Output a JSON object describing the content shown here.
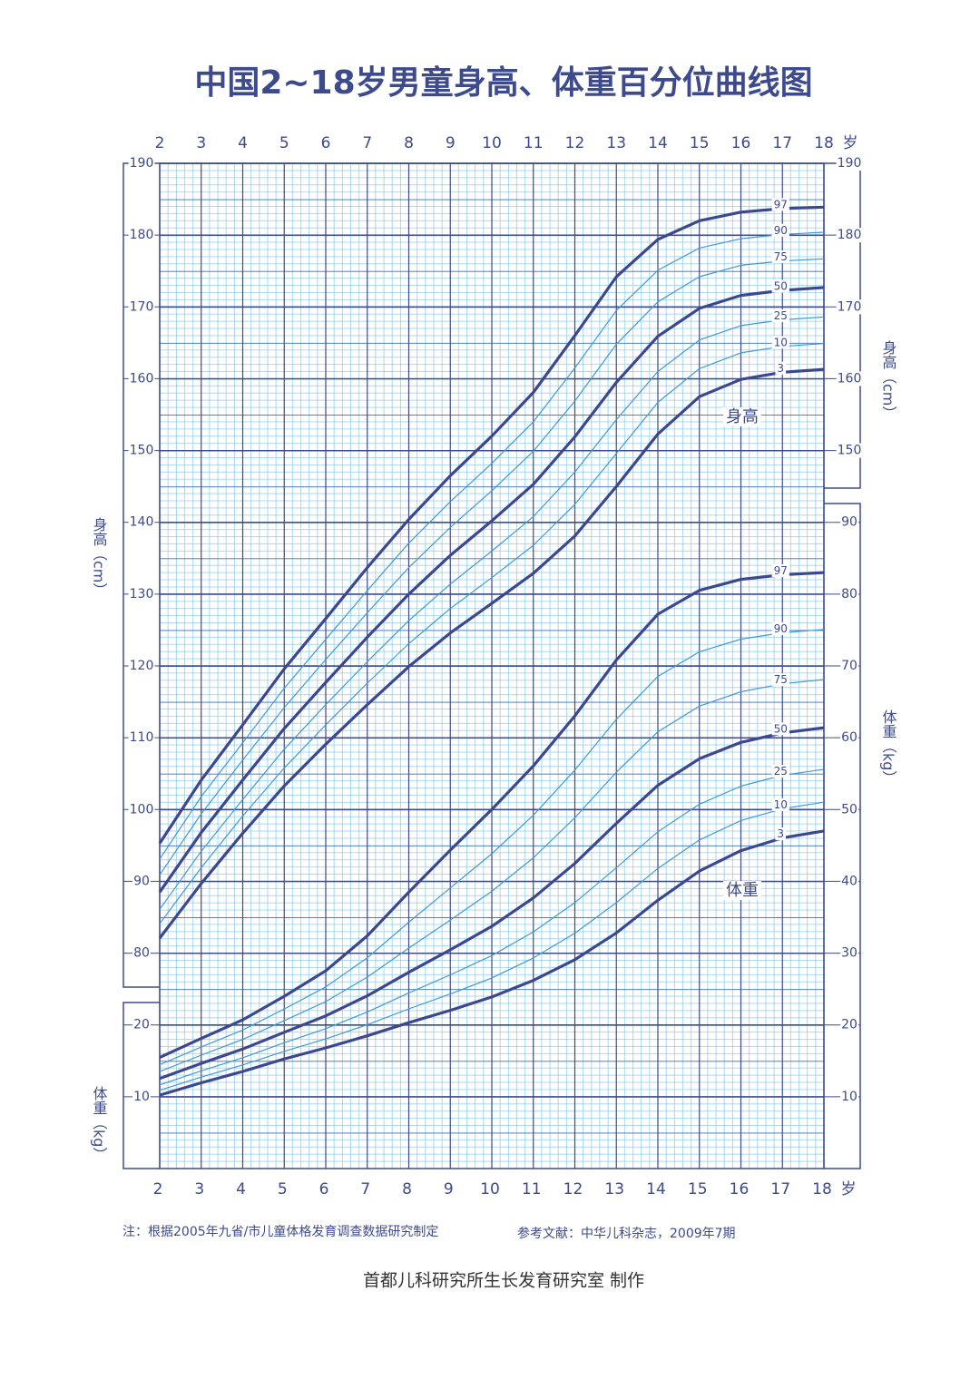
{
  "chart_data": {
    "type": "line",
    "title": "中国2~18岁男童身高、体重百分位曲线图",
    "x_unit": "岁",
    "y_label": "身高（cm）",
    "y2_label": "体重（kg）",
    "annotations": [
      "身高",
      "体重"
    ],
    "notes": [
      "注：根据2005年九省/市儿童体格发育调查数据研究制定",
      "参考文献：中华儿科杂志，2009年7期"
    ],
    "credit": "首都儿科研究所生长发育研究室 制作",
    "grid": true,
    "x": [
      2,
      3,
      4,
      5,
      6,
      7,
      8,
      9,
      10,
      11,
      12,
      13,
      14,
      15,
      16,
      17,
      18
    ],
    "xlim": [
      2,
      18
    ],
    "xticks": [
      2,
      3,
      4,
      5,
      6,
      7,
      8,
      9,
      10,
      11,
      12,
      13,
      14,
      15,
      16,
      17,
      18
    ],
    "ylim": [
      50,
      190
    ],
    "yticks": [
      80,
      90,
      100,
      110,
      120,
      130,
      140,
      150,
      160,
      170,
      180,
      190
    ],
    "yticks_right": [
      150,
      160,
      170,
      180,
      190
    ],
    "y2lim": [
      0,
      140
    ],
    "y2ticks": [
      10,
      20,
      30,
      40,
      50,
      60,
      70,
      80,
      90
    ],
    "y2ticks_left": [
      10,
      20
    ],
    "series": [
      {
        "name": "97",
        "axis": "y",
        "color": "#3b4890",
        "values": [
          95.3,
          104.1,
          111.8,
          119.6,
          126.6,
          133.7,
          140.4,
          146.5,
          152.0,
          158.1,
          166.0,
          174.2,
          179.4,
          182.0,
          183.2,
          183.7,
          183.9
        ]
      },
      {
        "name": "90",
        "axis": "y",
        "color": "#3e9ad6",
        "values": [
          93.1,
          101.8,
          109.3,
          116.9,
          123.7,
          130.5,
          137.1,
          142.9,
          148.2,
          154.0,
          161.5,
          169.5,
          175.1,
          178.2,
          179.5,
          180.1,
          180.4
        ]
      },
      {
        "name": "75",
        "axis": "y",
        "color": "#3e9ad6",
        "values": [
          90.9,
          99.4,
          106.9,
          114.2,
          120.9,
          127.4,
          133.7,
          139.3,
          144.4,
          149.9,
          156.9,
          164.8,
          170.7,
          174.2,
          175.8,
          176.4,
          176.7
        ]
      },
      {
        "name": "50",
        "axis": "y",
        "color": "#3b4890",
        "values": [
          88.5,
          96.8,
          104.1,
          111.3,
          117.7,
          124.0,
          130.0,
          135.4,
          140.2,
          145.3,
          151.9,
          159.5,
          165.9,
          169.8,
          171.6,
          172.3,
          172.7
        ]
      },
      {
        "name": "25",
        "axis": "y",
        "color": "#3e9ad6",
        "values": [
          86.1,
          94.2,
          101.4,
          108.4,
          114.6,
          120.6,
          126.3,
          131.4,
          136.0,
          140.8,
          147.0,
          154.3,
          161.0,
          165.4,
          167.4,
          168.2,
          168.6
        ]
      },
      {
        "name": "10",
        "axis": "y",
        "color": "#3e9ad6",
        "values": [
          84.1,
          91.9,
          99.1,
          105.8,
          111.8,
          117.6,
          123.1,
          128.0,
          132.3,
          136.8,
          142.5,
          149.6,
          156.7,
          161.4,
          163.6,
          164.5,
          164.9
        ]
      },
      {
        "name": "3",
        "axis": "y",
        "color": "#3b4890",
        "values": [
          82.1,
          89.7,
          96.7,
          103.3,
          109.1,
          114.6,
          119.9,
          124.6,
          128.7,
          132.9,
          138.1,
          145.0,
          152.3,
          157.5,
          159.9,
          160.9,
          161.3
        ]
      },
      {
        "name": "97",
        "axis": "y2",
        "color": "#3b4890",
        "values": [
          15.46,
          18.12,
          20.71,
          24.0,
          27.55,
          32.41,
          38.49,
          44.35,
          50.01,
          56.07,
          63.04,
          70.83,
          77.2,
          80.53,
          82.05,
          82.7,
          83.0
        ]
      },
      {
        "name": "90",
        "axis": "y2",
        "color": "#3e9ad6",
        "values": [
          14.46,
          16.92,
          19.29,
          22.23,
          25.29,
          29.35,
          34.31,
          39.08,
          43.85,
          49.2,
          55.5,
          62.57,
          68.53,
          71.97,
          73.73,
          74.62,
          75.08
        ]
      },
      {
        "name": "75",
        "axis": "y2",
        "color": "#3e9ad6",
        "values": [
          13.51,
          15.8,
          17.98,
          20.61,
          23.26,
          26.66,
          30.71,
          34.61,
          38.61,
          43.27,
          48.86,
          55.21,
          60.83,
          64.4,
          66.4,
          67.51,
          68.11
        ]
      },
      {
        "name": "50",
        "axis": "y2",
        "color": "#3b4890",
        "values": [
          12.54,
          14.65,
          16.64,
          18.98,
          21.26,
          24.06,
          27.33,
          30.46,
          33.74,
          37.69,
          42.49,
          48.08,
          53.37,
          57.08,
          59.35,
          60.68,
          61.4
        ]
      },
      {
        "name": "25",
        "axis": "y2",
        "color": "#3e9ad6",
        "values": [
          11.65,
          13.61,
          15.43,
          17.52,
          19.49,
          21.81,
          24.46,
          26.98,
          29.66,
          32.97,
          37.03,
          41.9,
          46.9,
          50.75,
          53.26,
          54.77,
          55.6
        ]
      },
      {
        "name": "10",
        "axis": "y2",
        "color": "#3e9ad6",
        "values": [
          10.9,
          12.74,
          14.43,
          16.33,
          18.06,
          20.04,
          22.24,
          24.31,
          26.55,
          29.33,
          32.77,
          37.04,
          41.8,
          45.77,
          48.47,
          50.11,
          51.02
        ]
      },
      {
        "name": "3",
        "axis": "y2",
        "color": "#3b4890",
        "values": [
          10.22,
          11.94,
          13.52,
          15.26,
          16.8,
          18.48,
          20.32,
          22.04,
          23.89,
          26.21,
          29.09,
          32.82,
          37.36,
          41.43,
          44.28,
          46.04,
          47.01
        ]
      }
    ]
  }
}
